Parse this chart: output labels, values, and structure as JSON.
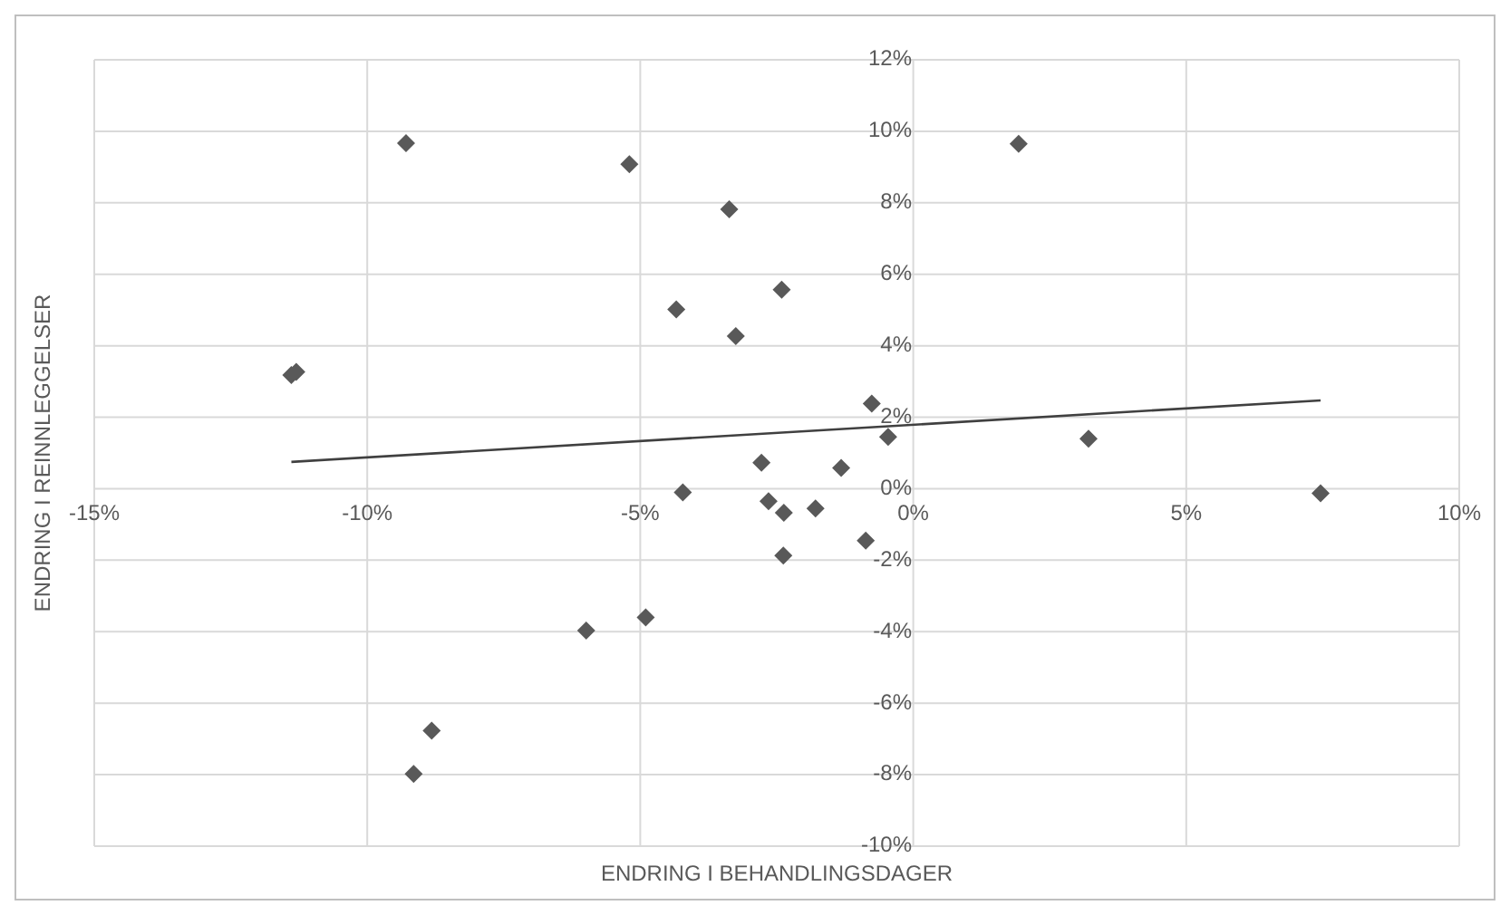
{
  "chart_data": {
    "type": "scatter",
    "xlabel": "ENDRING I BEHANDLINGSDAGER",
    "ylabel": "ENDRING I REINNLEGGELSER",
    "xlim": [
      -15,
      10
    ],
    "ylim": [
      -10,
      12
    ],
    "xticks": [
      {
        "value": -15,
        "label": "-15%"
      },
      {
        "value": -10,
        "label": "-10%"
      },
      {
        "value": -5,
        "label": "-5%"
      },
      {
        "value": 0,
        "label": "0%"
      },
      {
        "value": 5,
        "label": "5%"
      },
      {
        "value": 10,
        "label": "10%"
      }
    ],
    "yticks": [
      {
        "value": -10,
        "label": "-10%"
      },
      {
        "value": -8,
        "label": "-8%"
      },
      {
        "value": -6,
        "label": "-6%"
      },
      {
        "value": -4,
        "label": "-4%"
      },
      {
        "value": -2,
        "label": "-2%"
      },
      {
        "value": 0,
        "label": "0%"
      },
      {
        "value": 2,
        "label": "2%"
      },
      {
        "value": 4,
        "label": "4%"
      },
      {
        "value": 6,
        "label": "6%"
      },
      {
        "value": 8,
        "label": "8%"
      },
      {
        "value": 10,
        "label": "10%"
      },
      {
        "value": 12,
        "label": "12%"
      }
    ],
    "grid": true,
    "legend": false,
    "series": [
      {
        "color": "#595959",
        "marker": "diamond",
        "x": [
          -11.39,
          -11.3,
          -9.29,
          -5.2,
          -3.37,
          -4.34,
          -3.25,
          -2.41,
          -0.76,
          -0.46,
          -2.78,
          -1.32,
          -4.22,
          -2.65,
          -2.37,
          -1.79,
          -0.87,
          -2.38,
          -4.9,
          -5.99,
          -8.82,
          -9.15,
          1.93,
          3.21,
          7.46
        ],
        "values": [
          3.18,
          3.27,
          9.67,
          9.08,
          7.82,
          5.02,
          4.27,
          5.57,
          2.38,
          1.45,
          0.73,
          0.58,
          -0.1,
          -0.35,
          -0.67,
          -0.55,
          -1.45,
          -1.87,
          -3.6,
          -3.97,
          -6.77,
          -7.98,
          9.65,
          1.4,
          -0.13
        ]
      },
      {
        "type": "line",
        "color": "#404040",
        "marker": "none",
        "line_style": "solid",
        "x": [
          -11.39,
          7.46
        ],
        "values": [
          0.75,
          2.47
        ]
      }
    ]
  }
}
